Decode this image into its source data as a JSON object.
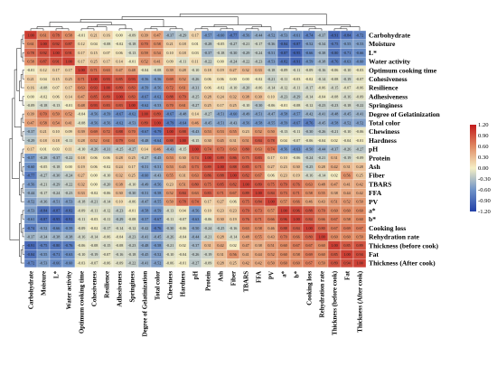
{
  "chart_data": {
    "type": "heatmap",
    "title": "",
    "variables": [
      "Carbohydrate",
      "Moisture",
      "L*",
      "Water activity",
      "Optimum cooking time",
      "Cohesiveness",
      "Resilience",
      "Adhesiveness",
      "Springiness",
      "Degree of Gelatinization",
      "Total color",
      "Chewiness",
      "Hardness",
      "pH",
      "Protein",
      "Ash",
      "Fiber",
      "TBARS",
      "FFA",
      "PV",
      "a*",
      "b*",
      "Cooking loss",
      "Rehydration rate",
      "Thickness (before cook)",
      "Fat",
      "Thickness (After cook)"
    ],
    "column_labels": [
      "Carbohydrate",
      "Moisture",
      "L*",
      "Water activity",
      "Optimum cooking time",
      "Cohesiveness",
      "Resilience",
      "Adhesiveness",
      "Springiness",
      "Degree of Gelatinization",
      "Total color",
      "Chewiness",
      "Hardness",
      "pH",
      "Protein",
      "Ash",
      "Fiber",
      "TBARS",
      "FFA",
      "PV",
      "a*",
      "b*",
      "Cooking loss",
      "Rehydration rate",
      "Thickness (before cook)",
      "Fat",
      "Thickness (After cook)"
    ],
    "row_labels": [
      "Carbohydrate",
      "Moisture",
      "L*",
      "Water activity",
      "Optimum cooking time",
      "Cohesiveness",
      "Resilience",
      "Adhesiveness",
      "Springiness",
      "Degree of Gelatinization",
      "Total color",
      "Chewiness",
      "Hardness",
      "pH",
      "Protein",
      "Ash",
      "Fiber",
      "TBARS",
      "FFA",
      "PV",
      "a*",
      "b*",
      "Cooking loss",
      "Rehydration rate",
      "Thickness (before cook)",
      "Fat",
      "Thickness (After cook)"
    ],
    "matrix": [
      [
        1.0,
        0.61,
        0.78,
        0.58,
        -0.01,
        0.21,
        0.16,
        -0.0,
        -0.09,
        0.39,
        0.47,
        -0.37,
        -0.29,
        0.17,
        -0.57,
        -0.6,
        -0.77,
        -0.56,
        -0.44,
        -0.52,
        -0.53,
        -0.61,
        -0.74,
        -0.37,
        -0.91,
        -0.84,
        -0.72
      ],
      [
        0.61,
        1.0,
        0.92,
        0.87,
        0.12,
        0.04,
        -0.08,
        -0.02,
        -0.18,
        0.7,
        0.58,
        0.21,
        0.18,
        0.01,
        -0.28,
        -0.05,
        -0.27,
        -0.21,
        -0.17,
        -0.36,
        -0.84,
        -0.87,
        -0.52,
        -0.34,
        -0.75,
        -0.55,
        -0.53
      ],
      [
        0.78,
        0.92,
        1.0,
        0.91,
        0.17,
        0.15,
        0.07,
        0.06,
        -0.13,
        0.59,
        0.54,
        0.1,
        0.18,
        0.03,
        -0.37,
        -0.18,
        -0.3,
        -0.29,
        -0.24,
        -0.51,
        -0.87,
        -0.95,
        -0.66,
        -0.38,
        -0.8,
        -0.71,
        -0.66
      ],
      [
        0.58,
        0.87,
        0.91,
        1.0,
        0.17,
        0.25,
        0.17,
        0.14,
        -0.01,
        0.52,
        0.41,
        0.09,
        -0.11,
        0.11,
        -0.22,
        -0.0,
        -0.24,
        -0.22,
        -0.23,
        -0.53,
        -0.82,
        -0.91,
        -0.59,
        -0.38,
        -0.76,
        -0.63,
        -0.6
      ],
      [
        -0.01,
        0.12,
        0.17,
        0.17,
        1.0,
        0.71,
        0.63,
        0.47,
        0.48,
        -0.04,
        -0.08,
        0.39,
        0.28,
        -0.1,
        0.18,
        0.19,
        0.27,
        0.32,
        0.33,
        -0.18,
        -0.09,
        -0.11,
        -0.09,
        -0.16,
        -0.06,
        -0.1,
        -0.03
      ],
      [
        0.21,
        0.04,
        0.15,
        0.25,
        0.71,
        1.0,
        0.93,
        0.85,
        0.93,
        -0.56,
        -0.56,
        0.69,
        0.52,
        -0.26,
        0.06,
        0.06,
        0.0,
        -0.0,
        -0.02,
        -0.21,
        -0.11,
        -0.03,
        -0.02,
        -0.14,
        -0.08,
        -0.19,
        -0.07
      ],
      [
        0.16,
        -0.08,
        0.07,
        0.17,
        0.63,
        0.93,
        1.0,
        0.89,
        0.83,
        -0.59,
        -0.56,
        0.72,
        0.61,
        -0.31,
        0.06,
        -0.02,
        -0.1,
        -0.2,
        -0.06,
        -0.14,
        -0.12,
        -0.11,
        -0.17,
        -0.06,
        -0.15,
        -0.07,
        -0.06
      ],
      [
        -0.0,
        -0.02,
        0.06,
        0.14,
        0.47,
        0.85,
        0.89,
        1.0,
        0.83,
        -0.67,
        -0.62,
        0.88,
        0.79,
        -0.25,
        0.28,
        0.24,
        0.32,
        0.38,
        0.3,
        0.1,
        -0.23,
        -0.29,
        -0.14,
        -0.04,
        -0.08,
        -0.16,
        -0.09
      ],
      [
        -0.09,
        -0.18,
        -0.13,
        -0.01,
        0.48,
        0.93,
        0.83,
        0.83,
        1.0,
        -0.62,
        -0.53,
        0.7,
        0.61,
        -0.27,
        0.25,
        0.17,
        0.25,
        -0.1,
        -0.3,
        -0.06,
        -0.01,
        -0.08,
        -0.12,
        -0.23,
        -0.23,
        -0.18,
        -0.22
      ],
      [
        0.39,
        0.7,
        0.59,
        0.52,
        -0.04,
        -0.56,
        -0.59,
        -0.67,
        -0.62,
        1.0,
        0.89,
        -0.67,
        -0.48,
        0.14,
        -0.27,
        -0.51,
        -0.6,
        -0.49,
        -0.51,
        -0.47,
        -0.58,
        -0.57,
        -0.42,
        -0.41,
        -0.48,
        -0.45,
        -0.41
      ],
      [
        0.47,
        0.58,
        0.54,
        0.41,
        -0.08,
        -0.56,
        -0.56,
        -0.62,
        -0.53,
        0.89,
        1.0,
        -0.79,
        -0.64,
        0.46,
        -0.45,
        -0.51,
        -0.43,
        -0.56,
        -0.58,
        -0.55,
        -0.59,
        -0.67,
        -0.76,
        -0.45,
        -0.58,
        -0.52,
        -0.52
      ],
      [
        -0.37,
        0.21,
        0.1,
        0.09,
        0.39,
        0.69,
        0.72,
        0.88,
        0.7,
        -0.67,
        -0.79,
        1.0,
        0.88,
        -0.43,
        0.53,
        0.53,
        0.55,
        0.23,
        0.52,
        0.5,
        -0.13,
        -0.11,
        -0.3,
        -0.26,
        -0.21,
        -0.1,
        -0.06
      ],
      [
        -0.29,
        0.18,
        0.18,
        -0.11,
        0.28,
        0.52,
        0.61,
        0.79,
        0.61,
        -0.48,
        -0.64,
        0.88,
        1.0,
        -0.15,
        0.3,
        0.45,
        0.31,
        0.51,
        0.84,
        0.78,
        0.04,
        -0.07,
        -0.06,
        -0.04,
        0.02,
        -0.04,
        -0.01
      ],
      [
        0.17,
        0.01,
        0.03,
        0.11,
        -0.1,
        -0.26,
        -0.31,
        -0.25,
        -0.27,
        0.14,
        0.46,
        -0.43,
        -0.15,
        1.0,
        0.74,
        0.73,
        0.63,
        0.8,
        0.63,
        0.74,
        -0.56,
        -0.63,
        -0.5,
        -0.44,
        -0.37,
        -0.26,
        -0.27
      ],
      [
        -0.57,
        -0.28,
        -0.37,
        -0.22,
        0.18,
        0.06,
        0.06,
        0.28,
        0.25,
        -0.27,
        -0.45,
        0.53,
        0.3,
        0.74,
        1.0,
        0.89,
        0.86,
        0.75,
        0.83,
        0.17,
        0.1,
        -0.06,
        -0.24,
        -0.21,
        0.31,
        -0.19,
        -0.09
      ],
      [
        -0.6,
        -0.05,
        -0.18,
        -0.0,
        0.19,
        0.06,
        -0.02,
        0.24,
        0.17,
        -0.51,
        -0.51,
        0.53,
        0.45,
        0.73,
        0.89,
        1.0,
        0.88,
        0.85,
        0.71,
        0.27,
        0.23,
        0.3,
        -0.25,
        0.28,
        0.42,
        0.31,
        0.28
      ],
      [
        -0.77,
        -0.27,
        -0.3,
        -0.24,
        0.27,
        0.0,
        -0.1,
        0.32,
        0.25,
        -0.6,
        -0.43,
        0.55,
        0.31,
        0.63,
        0.86,
        0.88,
        1.0,
        0.82,
        0.67,
        0.06,
        0.23,
        0.19,
        -0.16,
        -0.14,
        0.02,
        0.56,
        0.25
      ],
      [
        -0.56,
        -0.21,
        -0.29,
        -0.22,
        0.32,
        -0.0,
        -0.2,
        0.38,
        -0.1,
        -0.49,
        -0.56,
        0.23,
        0.51,
        0.8,
        0.75,
        0.85,
        0.82,
        1.0,
        0.89,
        0.75,
        0.79,
        0.76,
        0.63,
        0.48,
        0.47,
        0.41,
        0.42
      ],
      [
        -0.44,
        -0.17,
        -0.24,
        -0.23,
        0.33,
        -0.02,
        -0.06,
        0.3,
        -0.3,
        -0.51,
        -0.58,
        0.52,
        0.84,
        0.63,
        0.83,
        0.71,
        0.67,
        0.89,
        1.0,
        0.84,
        0.73,
        0.71,
        0.58,
        0.55,
        0.38,
        0.44,
        0.42
      ],
      [
        -0.52,
        -0.36,
        -0.51,
        -0.53,
        -0.18,
        -0.21,
        -0.14,
        0.1,
        -0.06,
        -0.47,
        -0.55,
        0.5,
        0.78,
        0.74,
        0.17,
        0.27,
        0.06,
        0.75,
        0.84,
        1.0,
        0.57,
        0.66,
        0.46,
        0.43,
        0.51,
        0.52,
        0.5
      ],
      [
        -0.53,
        -0.84,
        -0.87,
        -0.82,
        -0.09,
        -0.11,
        -0.12,
        -0.23,
        -0.01,
        -0.58,
        -0.59,
        -0.13,
        0.04,
        -0.56,
        0.1,
        0.23,
        0.23,
        0.79,
        0.73,
        0.57,
        1.0,
        0.96,
        0.88,
        0.7,
        0.6,
        0.6,
        0.6
      ],
      [
        -0.61,
        -0.87,
        -0.95,
        -0.91,
        -0.11,
        -0.03,
        -0.11,
        -0.29,
        -0.08,
        -0.57,
        -0.67,
        -0.11,
        -0.07,
        -0.63,
        -0.06,
        0.3,
        0.19,
        0.76,
        0.71,
        0.66,
        0.96,
        1.0,
        0.84,
        0.66,
        0.67,
        0.58,
        0.6
      ],
      [
        -0.74,
        -0.52,
        -0.66,
        -0.59,
        -0.09,
        -0.02,
        -0.17,
        -0.14,
        -0.12,
        -0.42,
        -0.76,
        -0.3,
        -0.06,
        -0.5,
        -0.24,
        -0.25,
        -0.16,
        0.63,
        0.58,
        0.46,
        0.88,
        0.84,
        1.0,
        0.8,
        0.67,
        0.69,
        0.67
      ],
      [
        -0.37,
        -0.34,
        -0.38,
        -0.38,
        -0.16,
        -0.14,
        -0.06,
        -0.04,
        -0.23,
        -0.41,
        -0.45,
        -0.26,
        -0.04,
        -0.44,
        -0.21,
        0.28,
        -0.14,
        0.48,
        0.55,
        0.43,
        0.7,
        0.66,
        0.8,
        1.0,
        0.6,
        0.6,
        0.59
      ],
      [
        -0.91,
        -0.75,
        -0.8,
        -0.76,
        -0.06,
        -0.08,
        -0.15,
        -0.08,
        -0.23,
        -0.48,
        -0.58,
        -0.21,
        0.02,
        -0.37,
        0.31,
        0.42,
        0.02,
        0.47,
        0.38,
        0.51,
        0.6,
        0.67,
        0.67,
        0.6,
        1.0,
        0.85,
        0.89
      ],
      [
        -0.84,
        -0.55,
        -0.71,
        -0.63,
        -0.1,
        -0.19,
        -0.07,
        -0.16,
        -0.18,
        -0.45,
        -0.52,
        -0.1,
        -0.04,
        -0.26,
        -0.19,
        0.31,
        0.56,
        0.41,
        0.44,
        0.52,
        0.6,
        0.58,
        0.69,
        0.6,
        0.85,
        1.0,
        0.94
      ],
      [
        -0.72,
        -0.53,
        -0.66,
        -0.6,
        -0.03,
        -0.07,
        -0.06,
        -0.09,
        -0.22,
        -0.41,
        -0.52,
        -0.06,
        -0.01,
        -0.27,
        -0.09,
        0.28,
        0.25,
        0.42,
        0.42,
        0.5,
        0.6,
        0.6,
        0.67,
        0.59,
        0.89,
        0.94,
        1.0
      ]
    ],
    "colorbar": {
      "ticks": [
        "1.20",
        "0.90",
        "0.60",
        "0.30",
        "0.00",
        "-0.30",
        "-0.60",
        "-0.90",
        "-1.20"
      ],
      "range": [
        -1.2,
        1.2
      ],
      "colors": [
        "#2240a8",
        "#6f93c8",
        "#f5efc5",
        "#e08a63",
        "#c21a1c"
      ]
    },
    "dendrogram": "hierarchical clustering on rows (left) and columns (top)"
  }
}
